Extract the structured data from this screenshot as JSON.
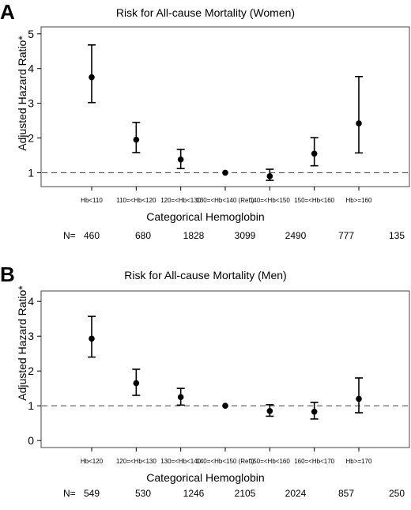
{
  "chart_data": [
    {
      "panel_letter": "A",
      "type": "scatter",
      "title": "Risk for All-cause Mortality (Women)",
      "ylabel": "Adjusted Hazard Ratio*",
      "xlabel": "Categorical Hemoglobin",
      "categories": [
        "Hb<110",
        "110=<Hb<120",
        "120=<Hb<130",
        "130=<Hb<140 (Ref.)",
        "140=<Hb<150",
        "150=<Hb<160",
        "Hb>=160"
      ],
      "estimates": [
        3.75,
        1.95,
        1.38,
        1.0,
        0.9,
        1.55,
        2.42
      ],
      "ci_lower": [
        3.02,
        1.58,
        1.12,
        1.0,
        0.78,
        1.2,
        1.57
      ],
      "ci_upper": [
        4.68,
        2.45,
        1.67,
        1.0,
        1.1,
        2.01,
        3.77
      ],
      "n_label": "N=",
      "n_values": [
        "460",
        "680",
        "1828",
        "3099",
        "2490",
        "777",
        "135"
      ],
      "reference_line": 1,
      "yticks": [
        1,
        2,
        3,
        4,
        5
      ],
      "ylim": [
        0.6,
        5.2
      ]
    },
    {
      "panel_letter": "B",
      "type": "scatter",
      "title": "Risk for All-cause Mortality (Men)",
      "ylabel": "Adjusted Hazard Ratio*",
      "xlabel": "Categorical Hemoglobin",
      "categories": [
        "Hb<120",
        "120=<Hb<130",
        "130=<Hb<140",
        "140=<Hb<150 (Ref.)",
        "150=<Hb<160",
        "160=<Hb<170",
        "Hb>=170"
      ],
      "estimates": [
        2.93,
        1.65,
        1.25,
        1.0,
        0.85,
        0.83,
        1.2
      ],
      "ci_lower": [
        2.4,
        1.3,
        1.02,
        1.0,
        0.7,
        0.62,
        0.8
      ],
      "ci_upper": [
        3.57,
        2.05,
        1.5,
        1.0,
        1.03,
        1.1,
        1.8
      ],
      "n_label": "N=",
      "n_values": [
        "549",
        "530",
        "1246",
        "2105",
        "2024",
        "857",
        "250"
      ],
      "reference_line": 1,
      "yticks": [
        0,
        1,
        2,
        3,
        4
      ],
      "ylim": [
        -0.2,
        4.3
      ]
    }
  ]
}
